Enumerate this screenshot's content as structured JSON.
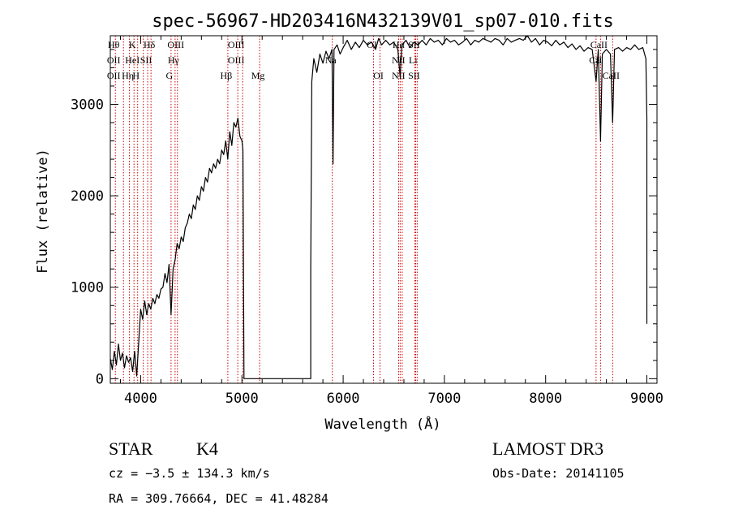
{
  "chart_data": {
    "type": "line",
    "title": "spec-56967-HD203416N432139V01_sp07-010.fits",
    "xlabel": "Wavelength (Å)",
    "ylabel": "Flux (relative)",
    "xlim": [
      3700,
      9100
    ],
    "ylim": [
      -50,
      3750
    ],
    "x_ticks": [
      4000,
      5000,
      6000,
      7000,
      8000,
      9000
    ],
    "y_ticks": [
      0,
      1000,
      2000,
      3000
    ],
    "grid": false,
    "line_color": "#000000",
    "marker_color": "#cc0000",
    "series": [
      {
        "points": [
          [
            3700,
            220
          ],
          [
            3720,
            100
          ],
          [
            3740,
            300
          ],
          [
            3760,
            150
          ],
          [
            3780,
            380
          ],
          [
            3800,
            200
          ],
          [
            3820,
            280
          ],
          [
            3840,
            120
          ],
          [
            3860,
            250
          ],
          [
            3880,
            180
          ],
          [
            3900,
            230
          ],
          [
            3920,
            80
          ],
          [
            3940,
            300
          ],
          [
            3960,
            30
          ],
          [
            3980,
            380
          ],
          [
            4000,
            760
          ],
          [
            4020,
            650
          ],
          [
            4040,
            850
          ],
          [
            4060,
            700
          ],
          [
            4080,
            820
          ],
          [
            4100,
            760
          ],
          [
            4120,
            880
          ],
          [
            4140,
            820
          ],
          [
            4160,
            920
          ],
          [
            4180,
            880
          ],
          [
            4200,
            980
          ],
          [
            4220,
            1000
          ],
          [
            4240,
            1150
          ],
          [
            4260,
            1050
          ],
          [
            4280,
            1250
          ],
          [
            4300,
            700
          ],
          [
            4320,
            1200
          ],
          [
            4340,
            1300
          ],
          [
            4360,
            1480
          ],
          [
            4380,
            1420
          ],
          [
            4400,
            1550
          ],
          [
            4420,
            1500
          ],
          [
            4440,
            1650
          ],
          [
            4460,
            1700
          ],
          [
            4480,
            1800
          ],
          [
            4500,
            1750
          ],
          [
            4520,
            1900
          ],
          [
            4540,
            1850
          ],
          [
            4560,
            2000
          ],
          [
            4580,
            1950
          ],
          [
            4600,
            2100
          ],
          [
            4620,
            2050
          ],
          [
            4640,
            2200
          ],
          [
            4660,
            2150
          ],
          [
            4680,
            2300
          ],
          [
            4700,
            2250
          ],
          [
            4720,
            2350
          ],
          [
            4740,
            2300
          ],
          [
            4760,
            2400
          ],
          [
            4780,
            2350
          ],
          [
            4800,
            2500
          ],
          [
            4820,
            2450
          ],
          [
            4840,
            2600
          ],
          [
            4860,
            2400
          ],
          [
            4880,
            2700
          ],
          [
            4900,
            2550
          ],
          [
            4920,
            2800
          ],
          [
            4940,
            2750
          ],
          [
            4960,
            2850
          ],
          [
            4980,
            2650
          ],
          [
            5000,
            2600
          ],
          [
            5010,
            2500
          ],
          [
            5020,
            1
          ],
          [
            5680,
            1
          ],
          [
            5680,
            1200
          ],
          [
            5690,
            3250
          ],
          [
            5710,
            3500
          ],
          [
            5740,
            3350
          ],
          [
            5770,
            3550
          ],
          [
            5800,
            3450
          ],
          [
            5830,
            3580
          ],
          [
            5860,
            3500
          ],
          [
            5890,
            3600
          ],
          [
            5900,
            2350
          ],
          [
            5910,
            3600
          ],
          [
            5940,
            3650
          ],
          [
            5970,
            3550
          ],
          [
            6000,
            3620
          ],
          [
            6040,
            3700
          ],
          [
            6080,
            3600
          ],
          [
            6120,
            3680
          ],
          [
            6160,
            3620
          ],
          [
            6200,
            3700
          ],
          [
            6240,
            3650
          ],
          [
            6280,
            3680
          ],
          [
            6320,
            3600
          ],
          [
            6350,
            3720
          ],
          [
            6380,
            3650
          ],
          [
            6420,
            3700
          ],
          [
            6460,
            3650
          ],
          [
            6500,
            3680
          ],
          [
            6540,
            3600
          ],
          [
            6563,
            3300
          ],
          [
            6580,
            3650
          ],
          [
            6620,
            3700
          ],
          [
            6660,
            3620
          ],
          [
            6700,
            3680
          ],
          [
            6740,
            3650
          ],
          [
            6780,
            3700
          ],
          [
            6820,
            3650
          ],
          [
            6860,
            3720
          ],
          [
            6900,
            3680
          ],
          [
            6940,
            3700
          ],
          [
            6980,
            3650
          ],
          [
            7020,
            3720
          ],
          [
            7060,
            3680
          ],
          [
            7100,
            3700
          ],
          [
            7140,
            3650
          ],
          [
            7180,
            3680
          ],
          [
            7220,
            3720
          ],
          [
            7260,
            3650
          ],
          [
            7300,
            3700
          ],
          [
            7340,
            3680
          ],
          [
            7380,
            3720
          ],
          [
            7420,
            3700
          ],
          [
            7460,
            3680
          ],
          [
            7500,
            3720
          ],
          [
            7540,
            3700
          ],
          [
            7580,
            3650
          ],
          [
            7620,
            3720
          ],
          [
            7660,
            3680
          ],
          [
            7700,
            3700
          ],
          [
            7740,
            3720
          ],
          [
            7780,
            3700
          ],
          [
            7820,
            3750
          ],
          [
            7860,
            3680
          ],
          [
            7900,
            3720
          ],
          [
            7940,
            3650
          ],
          [
            7980,
            3700
          ],
          [
            8020,
            3680
          ],
          [
            8060,
            3640
          ],
          [
            8100,
            3700
          ],
          [
            8140,
            3650
          ],
          [
            8180,
            3680
          ],
          [
            8220,
            3620
          ],
          [
            8260,
            3660
          ],
          [
            8300,
            3600
          ],
          [
            8340,
            3640
          ],
          [
            8380,
            3580
          ],
          [
            8420,
            3620
          ],
          [
            8460,
            3600
          ],
          [
            8498,
            3250
          ],
          [
            8520,
            3600
          ],
          [
            8542,
            2600
          ],
          [
            8560,
            3550
          ],
          [
            8600,
            3600
          ],
          [
            8640,
            3550
          ],
          [
            8662,
            2800
          ],
          [
            8680,
            3600
          ],
          [
            8720,
            3620
          ],
          [
            8760,
            3580
          ],
          [
            8800,
            3620
          ],
          [
            8840,
            3600
          ],
          [
            8880,
            3650
          ],
          [
            8920,
            3600
          ],
          [
            8960,
            3620
          ],
          [
            8990,
            3500
          ],
          [
            9000,
            2850
          ],
          [
            9000,
            600
          ]
        ]
      }
    ],
    "line_markers": [
      {
        "x": 3750,
        "labels": [
          "Hθ",
          "OII",
          "OII"
        ]
      },
      {
        "x": 3830,
        "labels": []
      },
      {
        "x": 3889,
        "labels": [
          "",
          "",
          "Hη"
        ]
      },
      {
        "x": 3934,
        "labels": [
          "K",
          "HeI",
          ""
        ]
      },
      {
        "x": 3970,
        "labels": [
          "",
          "",
          "H"
        ]
      },
      {
        "x": 4026,
        "labels": []
      },
      {
        "x": 4069,
        "labels": [
          "",
          "SII",
          ""
        ]
      },
      {
        "x": 4102,
        "labels": [
          "Hδ",
          "",
          ""
        ]
      },
      {
        "x": 4300,
        "labels": [
          "",
          "",
          "G"
        ]
      },
      {
        "x": 4340,
        "labels": [
          "",
          "Hγ",
          ""
        ]
      },
      {
        "x": 4363,
        "labels": [
          "OIII",
          "",
          ""
        ]
      },
      {
        "x": 4861,
        "labels": [
          "",
          "",
          "Hβ"
        ]
      },
      {
        "x": 4959,
        "labels": [
          "OIII",
          "OIII",
          ""
        ]
      },
      {
        "x": 5007,
        "labels": []
      },
      {
        "x": 5175,
        "labels": [
          "",
          "",
          "Mg"
        ]
      },
      {
        "x": 5893,
        "labels": [
          "",
          "Na",
          ""
        ]
      },
      {
        "x": 6300,
        "labels": [
          "OI",
          "",
          ""
        ]
      },
      {
        "x": 6364,
        "labels": [
          "",
          "",
          "OI"
        ]
      },
      {
        "x": 6548,
        "labels": [
          "",
          "",
          ""
        ]
      },
      {
        "x": 6563,
        "labels": [
          "Hα",
          "NII",
          "NII"
        ]
      },
      {
        "x": 6583,
        "labels": []
      },
      {
        "x": 6707,
        "labels": [
          "",
          "Li",
          ""
        ]
      },
      {
        "x": 6716,
        "labels": [
          "SII",
          "",
          "SII"
        ]
      },
      {
        "x": 6731,
        "labels": []
      },
      {
        "x": 8498,
        "labels": [
          "",
          "Ca",
          ""
        ]
      },
      {
        "x": 8542,
        "labels": [
          "CaII",
          "II",
          ""
        ]
      },
      {
        "x": 8662,
        "labels": [
          "",
          "",
          "CaII"
        ]
      }
    ]
  },
  "info": {
    "class": "STAR",
    "subclass": "K4",
    "survey": "LAMOST DR3",
    "cz": "cz = −3.5 ± 134.3 km/s",
    "obs_date": "Obs-Date: 20141105",
    "radec": "RA = 309.76664, DEC =  41.48284"
  }
}
